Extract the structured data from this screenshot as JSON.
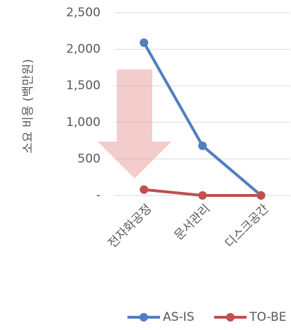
{
  "chart_data": {
    "type": "line",
    "y_label": "소요 비용 (백만원)",
    "categories": [
      "전자화공정",
      "문서관리",
      "디스크공간"
    ],
    "series": [
      {
        "name": "AS-IS",
        "color": "#4f7fbf",
        "values": [
          2090,
          680,
          0
        ]
      },
      {
        "name": "TO-BE",
        "color": "#c0504d",
        "values": [
          80,
          0,
          0
        ]
      }
    ],
    "ylim": [
      0,
      2500
    ],
    "yticks": [
      {
        "value": 0,
        "label": "-"
      },
      500,
      {
        "value": 1000,
        "label": "1,000"
      },
      {
        "value": 1500,
        "label": "1,500"
      },
      {
        "value": 2000,
        "label": "2,000"
      },
      {
        "value": 2500,
        "label": "2,500"
      }
    ],
    "grid": true,
    "legend": "bottom"
  }
}
